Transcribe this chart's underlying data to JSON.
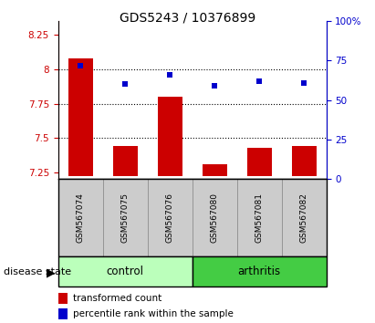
{
  "title": "GDS5243 / 10376899",
  "samples": [
    "GSM567074",
    "GSM567075",
    "GSM567076",
    "GSM567080",
    "GSM567081",
    "GSM567082"
  ],
  "transformed_count": [
    8.08,
    7.44,
    7.8,
    7.31,
    7.43,
    7.44
  ],
  "percentile_rank": [
    72,
    60,
    66,
    59,
    62,
    61
  ],
  "ylim_left": [
    7.2,
    8.35
  ],
  "ylim_right": [
    0,
    100
  ],
  "yticks_left": [
    7.25,
    7.5,
    7.75,
    8.0,
    8.25
  ],
  "yticks_right": [
    0,
    25,
    50,
    75,
    100
  ],
  "ytick_labels_left": [
    "7.25",
    "7.5",
    "7.75",
    "8",
    "8.25"
  ],
  "ytick_labels_right": [
    "0",
    "25",
    "50",
    "75",
    "100%"
  ],
  "bar_color": "#cc0000",
  "dot_color": "#0000cc",
  "control_color": "#bbffbb",
  "arthritis_color": "#44cc44",
  "sample_box_color": "#cccccc",
  "bar_bottom": 7.22,
  "grid_values": [
    7.5,
    7.75,
    8.0
  ],
  "legend_labels": [
    "transformed count",
    "percentile rank within the sample"
  ]
}
